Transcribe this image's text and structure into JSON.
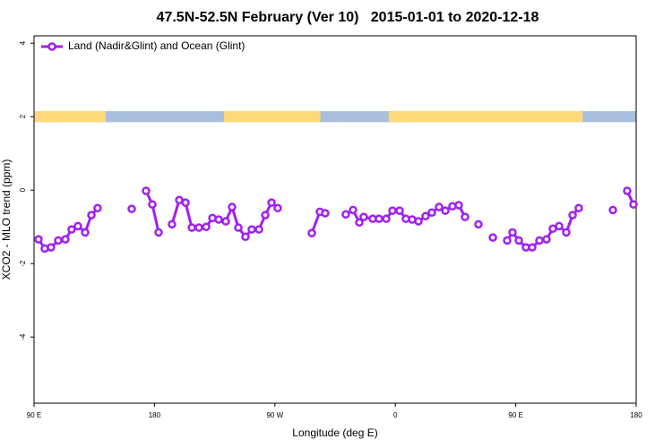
{
  "chart_data": {
    "type": "line",
    "title": "47.5N-52.5N February (Ver 10)   2015-01-01 to 2020-12-18",
    "xlabel": "Longitude (deg E)",
    "ylabel": "XCO2 - MLO trend (ppm)",
    "xlim": [
      90,
      540
    ],
    "ylim": [
      -5.8,
      4.2
    ],
    "xticks": [
      {
        "value": 90,
        "label": "90 E"
      },
      180,
      {
        "value": 270,
        "label": "90 W"
      },
      {
        "value": 360,
        "label": "0"
      },
      {
        "value": 450,
        "label": "90 E"
      },
      {
        "value": 540,
        "label": "180"
      }
    ],
    "yticks": [
      4,
      2,
      0,
      -2,
      -4
    ],
    "grid": false,
    "legend": "topleft",
    "surface_band": {
      "ylim": [
        1.85,
        2.15
      ],
      "ocean_color": "#a9bedc",
      "land_color": "#fdd97c",
      "land": [
        [
          90,
          143.5
        ],
        [
          232,
          304
        ],
        [
          355,
          500
        ]
      ]
    },
    "series": [
      {
        "name": "Land (Nadir&Glint) and Ocean (Glint)",
        "color": "#a020f0",
        "x": [
          93.3,
          98.0,
          102.7,
          108.1,
          113.4,
          118.1,
          122.8,
          128.2,
          132.9,
          137.5,
          150,
          163.0,
          168,
          173.7,
          178.4,
          183.1,
          188,
          193.1,
          198.5,
          203.2,
          207.9,
          213.2,
          218.6,
          223.3,
          228.0,
          233.3,
          238.0,
          242.7,
          248.0,
          252.7,
          258.1,
          262.8,
          267.5,
          272.1,
          285,
          297.6,
          303.6,
          307.6,
          315,
          323.0,
          328.4,
          333.1,
          336.4,
          343.1,
          347.8,
          353.2,
          357.9,
          363.2,
          367.9,
          372.6,
          377.3,
          382.6,
          387.3,
          392.7,
          397.4,
          402.7,
          407.4,
          412.1,
          417,
          422.1,
          427,
          432.9,
          438,
          443.6,
          447.6,
          452.3,
          457.6,
          462.3,
          467.7,
          473.0,
          477.7,
          482.4,
          487.8,
          492.5,
          497.1,
          510,
          522.6,
          528,
          533.3,
          538.0
        ],
        "values": [
          -1.34,
          -1.59,
          -1.56,
          -1.37,
          -1.34,
          -1.07,
          -0.98,
          -1.15,
          -0.68,
          -0.49,
          null,
          -0.51,
          null,
          -0.02,
          -0.39,
          -1.15,
          null,
          -0.93,
          -0.27,
          -0.34,
          -1.02,
          -1.02,
          -1.0,
          -0.76,
          -0.8,
          -0.85,
          -0.46,
          -1.02,
          -1.27,
          -1.07,
          -1.07,
          -0.68,
          -0.34,
          -0.49,
          null,
          -1.17,
          -0.59,
          -0.63,
          null,
          -0.66,
          -0.54,
          -0.88,
          -0.73,
          -0.78,
          -0.78,
          -0.78,
          -0.56,
          -0.56,
          -0.78,
          -0.8,
          -0.85,
          -0.71,
          -0.61,
          -0.46,
          -0.56,
          -0.44,
          -0.41,
          -0.73,
          null,
          -0.93,
          null,
          -1.29,
          null,
          -1.37,
          -1.15,
          -1.37,
          -1.56,
          -1.56,
          -1.37,
          -1.34,
          -1.05,
          -0.98,
          -1.15,
          -0.68,
          -0.49,
          null,
          -0.54,
          null,
          -0.02,
          -0.39
        ]
      }
    ]
  }
}
